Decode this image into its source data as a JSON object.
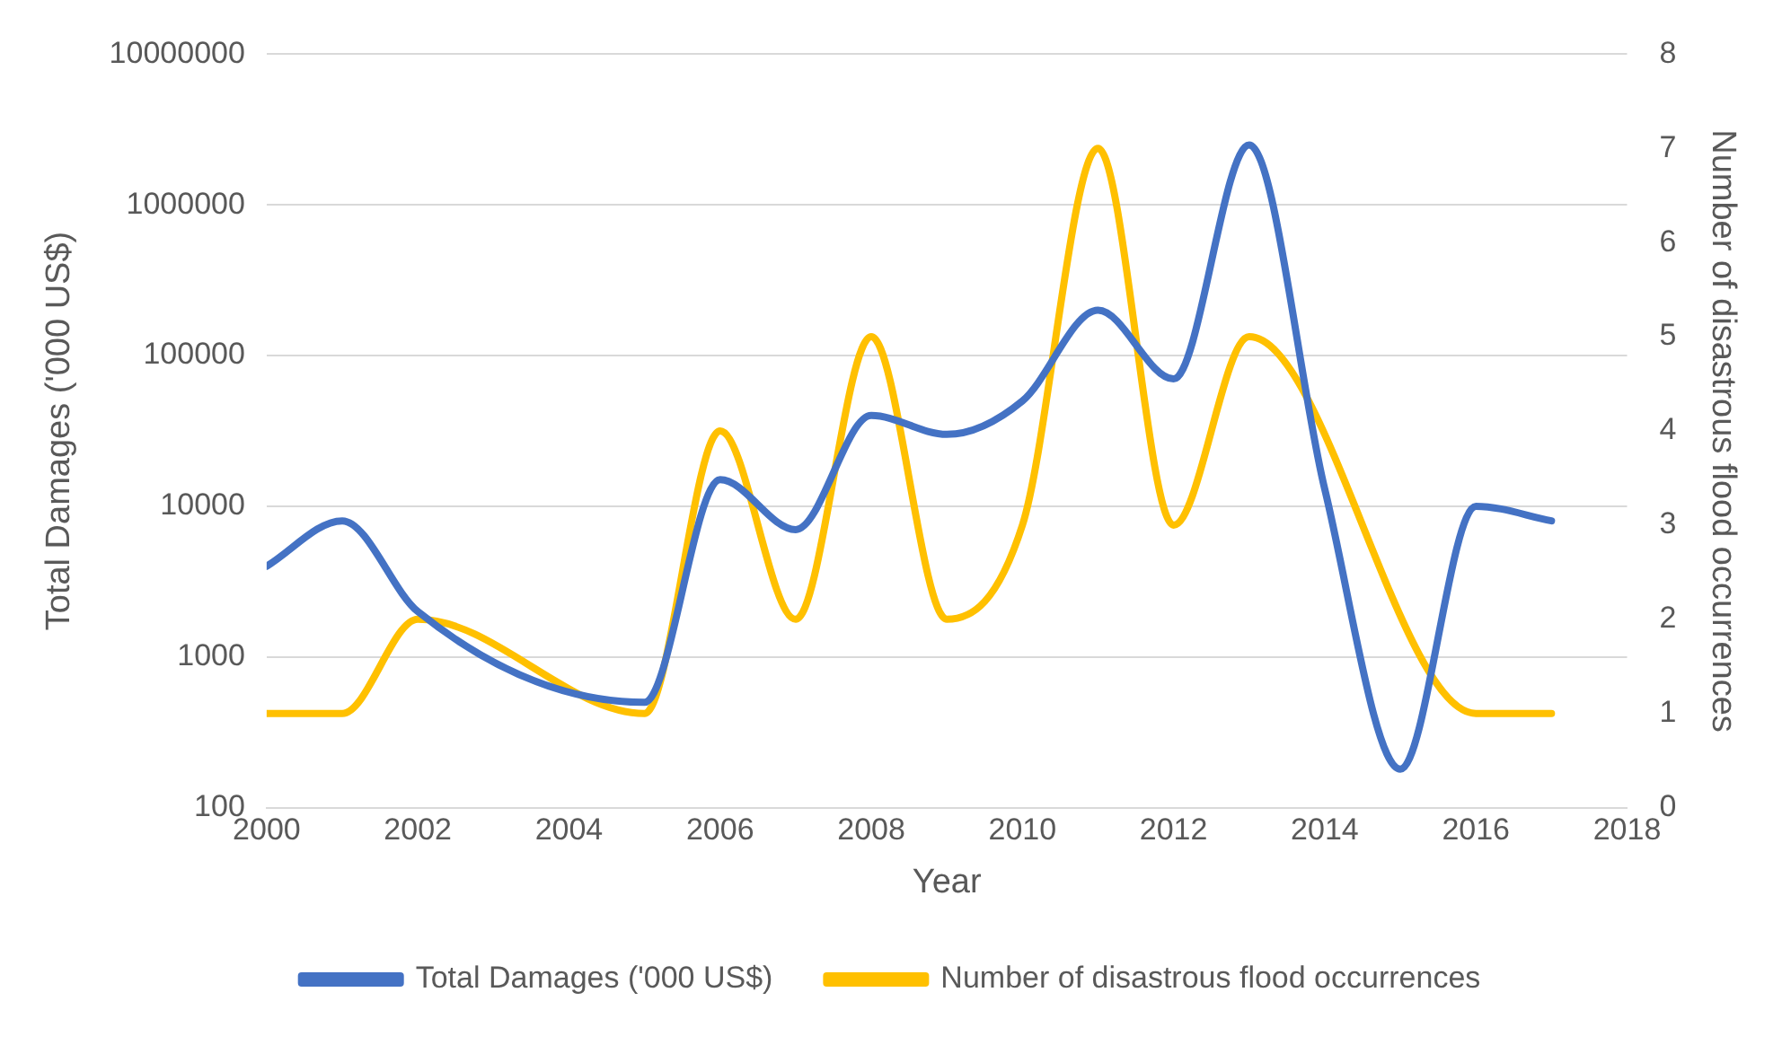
{
  "chart_data": {
    "type": "line",
    "xlabel": "Year",
    "ylabel": "Total Damages ('000 US$)",
    "y2label": "Number of disastrous flood occurrences",
    "series": [
      {
        "name": "Total Damages ('000 US$)",
        "color": "#4472c4",
        "x": [
          2000,
          2001,
          2002,
          2005,
          2006,
          2007,
          2008,
          2009,
          2010,
          2011,
          2012,
          2013,
          2014,
          2015,
          2016,
          2017
        ],
        "values": [
          4000,
          8000,
          2000,
          500,
          15000,
          7000,
          40000,
          30000,
          50000,
          200000,
          70000,
          2500000,
          13000,
          180,
          10000,
          8000
        ]
      },
      {
        "name": "Number of disastrous flood occurrences",
        "color": "#ffc000",
        "axis": "y2",
        "x": [
          2000,
          2001,
          2002,
          2005,
          2006,
          2007,
          2008,
          2009,
          2010,
          2011,
          2012,
          2013,
          2016,
          2017
        ],
        "values": [
          1,
          1,
          2,
          1,
          4,
          2,
          5,
          2,
          3,
          7,
          3,
          5,
          1,
          1
        ]
      }
    ],
    "log": "y",
    "xlim": [
      2000,
      2018
    ],
    "xticks": [
      2000,
      2002,
      2004,
      2006,
      2008,
      2010,
      2012,
      2014,
      2016,
      2018
    ],
    "ylim": [
      100,
      10000000
    ],
    "yticks": [
      100,
      1000,
      10000,
      100000,
      1000000,
      10000000
    ],
    "y2lim": [
      0,
      8
    ],
    "y2ticks": [
      0,
      1,
      2,
      3,
      4,
      5,
      6,
      7,
      8
    ],
    "grid": "y",
    "legend": "bottom",
    "marker": "none",
    "line_style": "solid"
  }
}
